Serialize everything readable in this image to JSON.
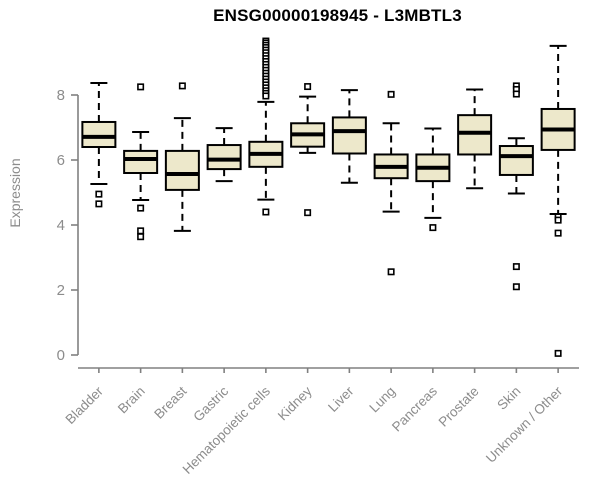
{
  "chart_data": {
    "type": "boxplot",
    "title": "ENSG00000198945 - L3MBTL3",
    "ylabel": "Expression",
    "xlabel": "",
    "yticks": [
      0,
      2,
      4,
      6,
      8
    ],
    "ylim": [
      -0.3,
      9.9
    ],
    "grid": false,
    "legend": false,
    "box_fill": "#EDE8CB",
    "box_stroke": "#000000",
    "outlier_fill": "#ffffff",
    "axis_color": "#808080",
    "label_color": "#8c8c8c",
    "categories": [
      "Bladder",
      "Brain",
      "Breast",
      "Gastric",
      "Hematopoietic cells",
      "Kidney",
      "Liver",
      "Lung",
      "Pancreas",
      "Prostate",
      "Skin",
      "Unknown / Other"
    ],
    "boxes": [
      {
        "category": "Bladder",
        "whisker_low": 5.26,
        "q1": 6.4,
        "median": 6.71,
        "q3": 7.17,
        "whisker_high": 8.37,
        "outliers": [
          4.95,
          4.65
        ]
      },
      {
        "category": "Brain",
        "whisker_low": 4.77,
        "q1": 5.6,
        "median": 6.03,
        "q3": 6.28,
        "whisker_high": 6.86,
        "outliers": [
          8.25,
          4.52,
          3.82,
          3.64
        ]
      },
      {
        "category": "Breast",
        "whisker_low": 3.82,
        "q1": 5.08,
        "median": 5.57,
        "q3": 6.28,
        "whisker_high": 7.29,
        "outliers": [
          8.28
        ]
      },
      {
        "category": "Gastric",
        "whisker_low": 5.35,
        "q1": 5.72,
        "median": 6.01,
        "q3": 6.46,
        "whisker_high": 6.98,
        "outliers": []
      },
      {
        "category": "Hematopoietic cells",
        "whisker_low": 4.78,
        "q1": 5.79,
        "median": 6.19,
        "q3": 6.56,
        "whisker_high": 7.79,
        "outliers": [
          9.66,
          9.6,
          9.53,
          9.46,
          9.38,
          9.3,
          9.21,
          9.12,
          9.03,
          8.94,
          8.85,
          8.76,
          8.67,
          8.58,
          8.49,
          8.4,
          8.31,
          8.22,
          8.13,
          8.05,
          7.97,
          4.4
        ]
      },
      {
        "category": "Kidney",
        "whisker_low": 6.22,
        "q1": 6.41,
        "median": 6.79,
        "q3": 7.13,
        "whisker_high": 7.95,
        "outliers": [
          8.26,
          4.38
        ]
      },
      {
        "category": "Liver",
        "whisker_low": 5.3,
        "q1": 6.2,
        "median": 6.89,
        "q3": 7.31,
        "whisker_high": 8.15,
        "outliers": []
      },
      {
        "category": "Lung",
        "whisker_low": 4.41,
        "q1": 5.44,
        "median": 5.79,
        "q3": 6.17,
        "whisker_high": 7.13,
        "outliers": [
          8.02,
          2.56
        ]
      },
      {
        "category": "Pancreas",
        "whisker_low": 4.22,
        "q1": 5.35,
        "median": 5.76,
        "q3": 6.17,
        "whisker_high": 6.97,
        "outliers": [
          3.92
        ]
      },
      {
        "category": "Prostate",
        "whisker_low": 5.13,
        "q1": 6.17,
        "median": 6.84,
        "q3": 7.38,
        "whisker_high": 8.17,
        "outliers": []
      },
      {
        "category": "Skin",
        "whisker_low": 4.97,
        "q1": 5.54,
        "median": 6.12,
        "q3": 6.43,
        "whisker_high": 6.67,
        "outliers": [
          8.28,
          8.17,
          8.03,
          2.72,
          2.1
        ]
      },
      {
        "category": "Unknown / Other",
        "whisker_low": 4.34,
        "q1": 6.31,
        "median": 6.94,
        "q3": 7.57,
        "whisker_high": 9.51,
        "outliers": [
          4.25,
          4.15,
          3.75,
          0.05
        ]
      }
    ]
  }
}
